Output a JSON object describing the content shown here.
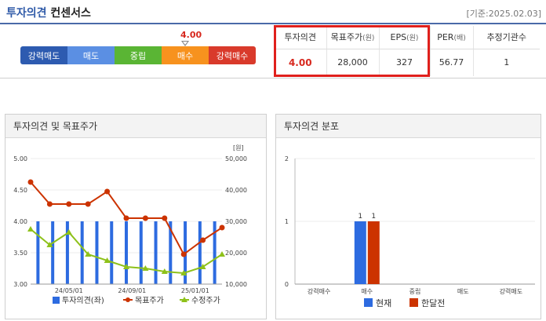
{
  "header": {
    "title_main": "투자의견",
    "title_sub": "컨센서스",
    "date": "[기준:2025.02.03]"
  },
  "opinion_scale": {
    "labels": [
      "강력매도",
      "매도",
      "중립",
      "매수",
      "강력매수"
    ],
    "current_value": "4.00",
    "current_score": 4.0
  },
  "summary_table": {
    "headers": [
      {
        "label": "투자의견",
        "unit": ""
      },
      {
        "label": "목표주가",
        "unit": "(원)"
      },
      {
        "label": "EPS",
        "unit": "(원)"
      },
      {
        "label": "PER",
        "unit": "(배)"
      },
      {
        "label": "추정기관수",
        "unit": ""
      }
    ],
    "values": [
      "4.00",
      "28,000",
      "327",
      "56.77",
      "1"
    ]
  },
  "panels": {
    "left_title": "투자의견 및 목표주가",
    "right_title": "투자의견 분포"
  },
  "colors": {
    "blue": "#2d6be0",
    "red": "#cc3300",
    "green": "#8ec11a",
    "accent_red": "#e0201c"
  },
  "chart_data": [
    {
      "type": "line",
      "unit_label": "[원]",
      "x_ticks": [
        "24/05/01",
        "24/09/01",
        "25/01/01"
      ],
      "y_left_ticks": [
        "5.00",
        "4.50",
        "4.00",
        "3.50",
        "3.00"
      ],
      "y_right_ticks": [
        "50,000",
        "40,000",
        "30,000",
        "20,000",
        "10,000"
      ],
      "ylim_left": [
        3.0,
        5.0
      ],
      "ylim_right": [
        10000,
        50000
      ],
      "series": [
        {
          "name": "투자의견(좌)",
          "axis": "left",
          "kind": "bar",
          "values": [
            4,
            4,
            4,
            4,
            4,
            4,
            4,
            4,
            4,
            4,
            4,
            4,
            4
          ]
        },
        {
          "name": "목표주가",
          "axis": "right",
          "kind": "line",
          "marker": "circle",
          "values": [
            42500,
            35500,
            35500,
            35500,
            39500,
            31000,
            31000,
            31000,
            19500,
            24000,
            28000
          ]
        },
        {
          "name": "수정주가",
          "axis": "right",
          "kind": "line",
          "marker": "triangle",
          "values": [
            27500,
            22500,
            26500,
            19500,
            17500,
            15500,
            15000,
            14000,
            13500,
            15500,
            19500
          ]
        }
      ],
      "legend": [
        "투자의견(좌)",
        "목표주가",
        "수정주가"
      ],
      "legend_position": "bottom"
    },
    {
      "type": "bar",
      "categories": [
        "강력매수",
        "매수",
        "중립",
        "매도",
        "강력매도"
      ],
      "ylim": [
        0,
        2
      ],
      "y_ticks": [
        "2",
        "1",
        "0"
      ],
      "series": [
        {
          "name": "현재",
          "values": [
            0,
            1,
            0,
            0,
            0
          ]
        },
        {
          "name": "한달전",
          "values": [
            0,
            1,
            0,
            0,
            0
          ]
        }
      ],
      "legend": [
        "현재",
        "한달전"
      ],
      "legend_position": "bottom"
    }
  ]
}
